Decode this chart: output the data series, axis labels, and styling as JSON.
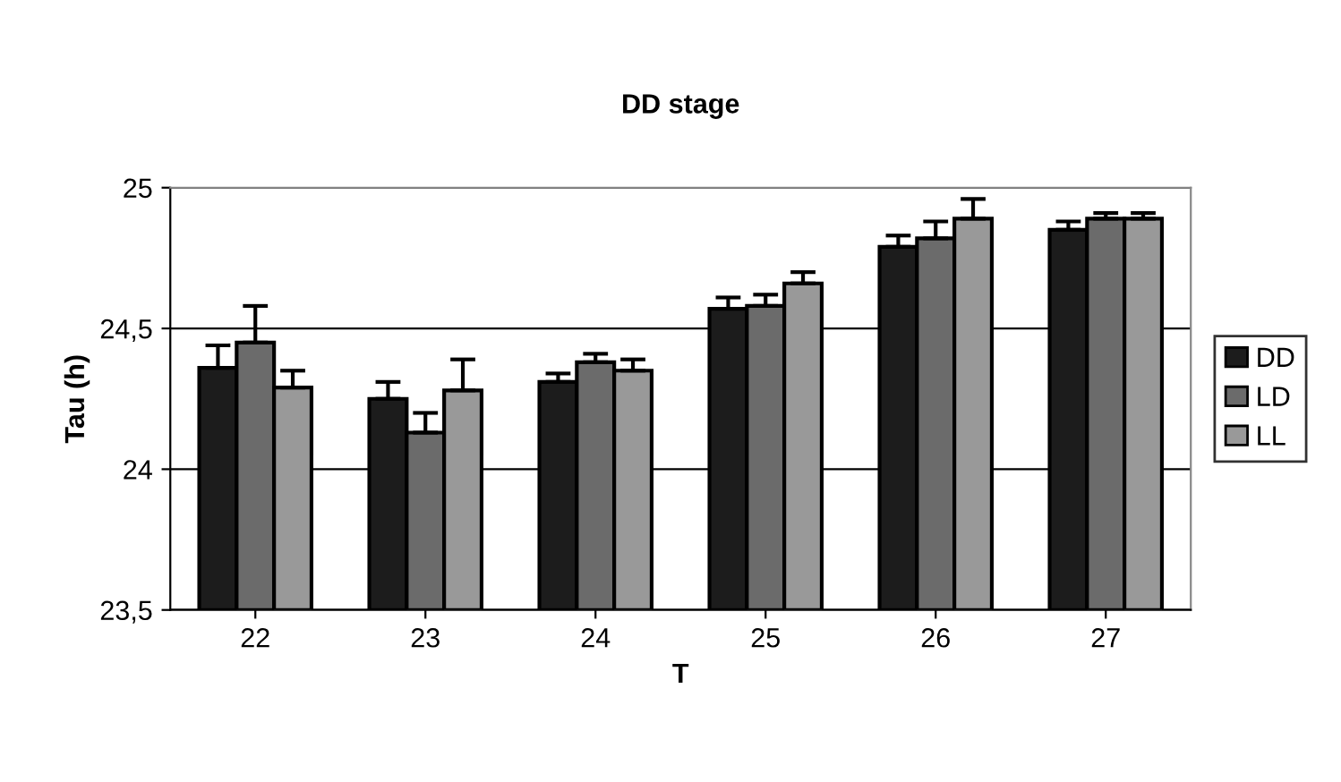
{
  "chart_data": {
    "type": "bar",
    "title": "DD stage",
    "xlabel": "T",
    "ylabel": "Tau (h)",
    "categories": [
      "22",
      "23",
      "24",
      "25",
      "26",
      "27"
    ],
    "series": [
      {
        "name": "DD",
        "color": "#1c1c1c",
        "values": [
          24.36,
          24.25,
          24.31,
          24.57,
          24.79,
          24.85
        ],
        "errors": [
          [
            24.36,
            24.44
          ],
          [
            24.25,
            24.31
          ],
          [
            24.31,
            24.34
          ],
          [
            24.57,
            24.61
          ],
          [
            24.79,
            24.83
          ],
          [
            24.85,
            24.88
          ]
        ]
      },
      {
        "name": "LD",
        "color": "#6b6b6b",
        "values": [
          24.45,
          24.13,
          24.38,
          24.58,
          24.82,
          24.89
        ],
        "errors": [
          [
            24.45,
            24.58
          ],
          [
            24.13,
            24.2
          ],
          [
            24.38,
            24.41
          ],
          [
            24.58,
            24.62
          ],
          [
            24.82,
            24.88
          ],
          [
            24.89,
            24.91
          ]
        ]
      },
      {
        "name": "LL",
        "color": "#999999",
        "values": [
          24.29,
          24.28,
          24.35,
          24.66,
          24.89,
          24.89
        ],
        "errors": [
          [
            24.29,
            24.35
          ],
          [
            24.28,
            24.39
          ],
          [
            24.35,
            24.39
          ],
          [
            24.66,
            24.7
          ],
          [
            24.89,
            24.96
          ],
          [
            24.89,
            24.91
          ]
        ]
      }
    ],
    "ylim": [
      23.5,
      25
    ],
    "yticks": [
      {
        "value": 23.5,
        "label": "23,5"
      },
      24,
      {
        "value": 24.5,
        "label": "24,5"
      },
      25
    ],
    "grid": "y",
    "legend": "right"
  }
}
